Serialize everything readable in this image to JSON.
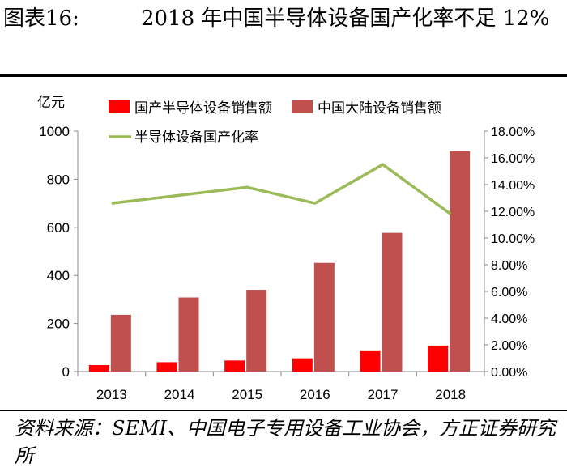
{
  "header": {
    "figure_label": "图表16:",
    "title": "2018 年中国半导体设备国产化率不足 12%"
  },
  "source": {
    "text": "资料来源：SEMI、中国电子专用设备工业协会，方正证券研究所"
  },
  "chart_data": {
    "type": "bar",
    "title": "2018 年中国半导体设备国产化率不足 12%",
    "categories": [
      "2013",
      "2014",
      "2015",
      "2016",
      "2017",
      "2018"
    ],
    "series": [
      {
        "name": "国产半导体设备销售额",
        "type": "bar",
        "axis": "left",
        "color": "#ff0000",
        "values": [
          27,
          39,
          46,
          55,
          88,
          108
        ]
      },
      {
        "name": "中国大陆设备销售额",
        "type": "bar",
        "axis": "left",
        "color": "#c0504d",
        "values": [
          236,
          308,
          340,
          452,
          577,
          917
        ]
      },
      {
        "name": "半导体设备国产化率",
        "type": "line",
        "axis": "right",
        "color": "#9bbb59",
        "values": [
          12.6,
          13.2,
          13.8,
          12.6,
          15.5,
          11.8
        ]
      }
    ],
    "ylabel": "亿元",
    "ylim": [
      0,
      1000
    ],
    "yticks": [
      0,
      200,
      400,
      600,
      800,
      1000
    ],
    "y2lim": [
      0,
      18
    ],
    "y2ticks": [
      "0.00%",
      "2.00%",
      "4.00%",
      "6.00%",
      "8.00%",
      "10.00%",
      "12.00%",
      "14.00%",
      "16.00%",
      "18.00%"
    ],
    "y2tick_values": [
      0,
      2,
      4,
      6,
      8,
      10,
      12,
      14,
      16,
      18
    ],
    "legend_position": "top",
    "grid": false
  }
}
